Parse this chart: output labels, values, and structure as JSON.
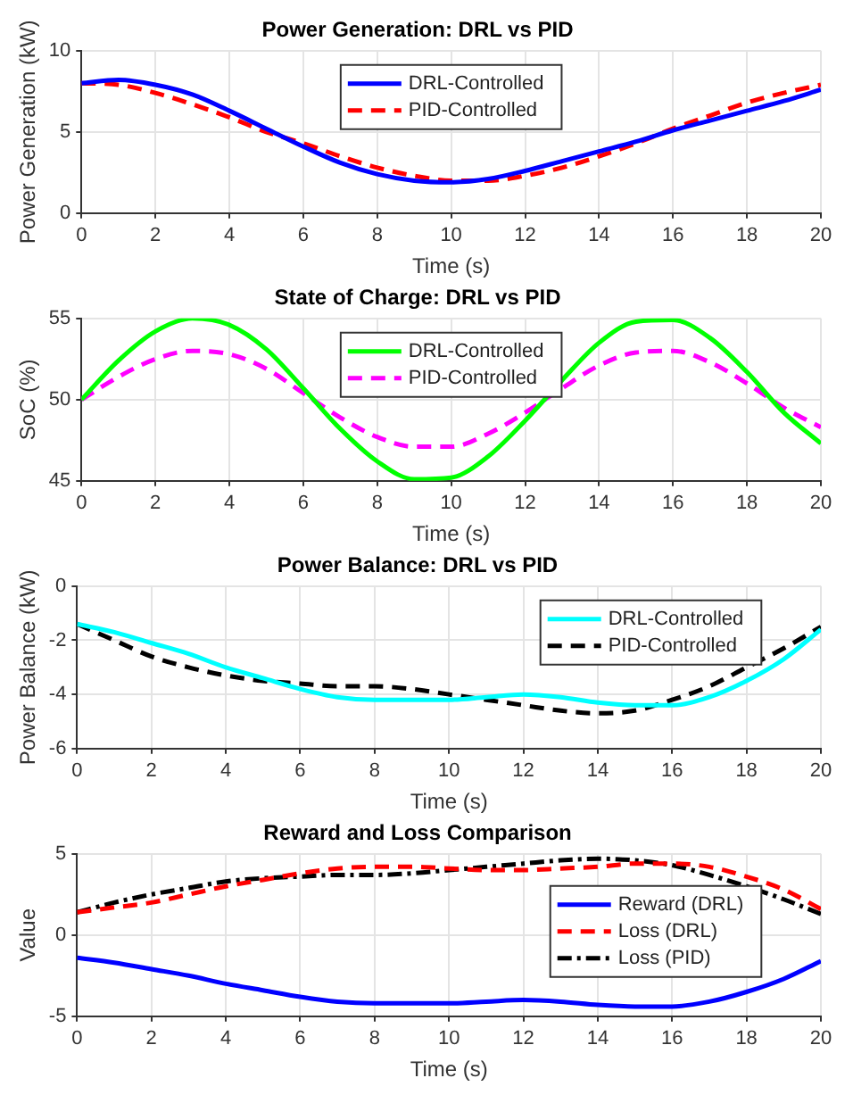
{
  "chart_data": [
    {
      "type": "line",
      "title": "Power Generation: DRL vs PID",
      "xlabel": "Time (s)",
      "ylabel": "Power Generation (kW)",
      "x": [
        0,
        1,
        2,
        3,
        4,
        5,
        6,
        7,
        8,
        9,
        10,
        11,
        12,
        13,
        14,
        15,
        16,
        17,
        18,
        19,
        20
      ],
      "xlim": [
        0,
        20
      ],
      "xticks": [
        0,
        2,
        4,
        6,
        8,
        10,
        12,
        14,
        16,
        18,
        20
      ],
      "ylim": [
        0,
        10
      ],
      "yticks": [
        0,
        5,
        10
      ],
      "grid": true,
      "legend": "top",
      "series": [
        {
          "name": "DRL-Controlled",
          "color": "#0000ff",
          "line_style": "solid",
          "values": [
            8.0,
            8.2,
            7.9,
            7.3,
            6.3,
            5.2,
            4.1,
            3.1,
            2.4,
            2.0,
            1.9,
            2.1,
            2.6,
            3.2,
            3.8,
            4.4,
            5.1,
            5.7,
            6.3,
            6.9,
            7.6
          ]
        },
        {
          "name": "PID-Controlled",
          "color": "#ff0000",
          "line_style": "dashed",
          "values": [
            8.0,
            7.9,
            7.4,
            6.7,
            5.9,
            5.0,
            4.3,
            3.5,
            2.8,
            2.3,
            2.0,
            2.0,
            2.3,
            2.8,
            3.5,
            4.3,
            5.2,
            6.0,
            6.8,
            7.4,
            7.9
          ]
        }
      ]
    },
    {
      "type": "line",
      "title": "State of Charge: DRL vs PID",
      "xlabel": "Time (s)",
      "ylabel": "SoC (%)",
      "x": [
        0,
        1,
        2,
        3,
        4,
        5,
        6,
        7,
        8,
        9,
        10,
        11,
        12,
        13,
        14,
        15,
        16,
        17,
        18,
        19,
        20
      ],
      "xlim": [
        0,
        20
      ],
      "xticks": [
        0,
        2,
        4,
        6,
        8,
        10,
        12,
        14,
        16,
        18,
        20
      ],
      "ylim": [
        45,
        55
      ],
      "yticks": [
        45,
        50,
        55
      ],
      "grid": true,
      "legend": "top",
      "series": [
        {
          "name": "DRL-Controlled",
          "color": "#00ff00",
          "line_style": "solid",
          "values": [
            50,
            52.4,
            54.2,
            55,
            54.6,
            53.1,
            50.7,
            48.2,
            46.2,
            45.1,
            45.2,
            46.5,
            48.7,
            51.2,
            53.5,
            54.8,
            54.9,
            53.8,
            51.7,
            49.2,
            47.3
          ]
        },
        {
          "name": "PID-Controlled",
          "color": "#ff00ff",
          "line_style": "dashed",
          "values": [
            50,
            51.4,
            52.5,
            53,
            52.8,
            51.9,
            50.4,
            48.9,
            47.7,
            47.1,
            47.1,
            47.9,
            49.2,
            50.7,
            52.1,
            52.9,
            53.0,
            52.3,
            51.0,
            49.5,
            48.3
          ]
        }
      ]
    },
    {
      "type": "line",
      "title": "Power Balance: DRL vs PID",
      "xlabel": "Time (s)",
      "ylabel": "Power Balance (kW)",
      "x": [
        0,
        1,
        2,
        3,
        4,
        5,
        6,
        7,
        8,
        9,
        10,
        11,
        12,
        13,
        14,
        15,
        16,
        17,
        18,
        19,
        20
      ],
      "xlim": [
        0,
        20
      ],
      "xticks": [
        0,
        2,
        4,
        6,
        8,
        10,
        12,
        14,
        16,
        18,
        20
      ],
      "ylim": [
        -6,
        0
      ],
      "yticks": [
        -6,
        -4,
        -2,
        0
      ],
      "grid": true,
      "legend": "top right",
      "series": [
        {
          "name": "DRL-Controlled",
          "color": "#00ffff",
          "line_style": "solid",
          "values": [
            -1.4,
            -1.7,
            -2.1,
            -2.5,
            -3.0,
            -3.4,
            -3.8,
            -4.1,
            -4.2,
            -4.2,
            -4.2,
            -4.1,
            -4.0,
            -4.1,
            -4.3,
            -4.4,
            -4.4,
            -4.1,
            -3.5,
            -2.7,
            -1.6
          ]
        },
        {
          "name": "PID-Controlled",
          "color": "#000000",
          "line_style": "dashed",
          "values": [
            -1.4,
            -2.0,
            -2.6,
            -3.0,
            -3.3,
            -3.5,
            -3.6,
            -3.7,
            -3.7,
            -3.8,
            -4.0,
            -4.2,
            -4.4,
            -4.6,
            -4.7,
            -4.6,
            -4.2,
            -3.7,
            -3.0,
            -2.3,
            -1.5
          ]
        }
      ]
    },
    {
      "type": "line",
      "title": "Reward and Loss Comparison",
      "xlabel": "Time (s)",
      "ylabel": "Value",
      "x": [
        0,
        1,
        2,
        3,
        4,
        5,
        6,
        7,
        8,
        9,
        10,
        11,
        12,
        13,
        14,
        15,
        16,
        17,
        18,
        19,
        20
      ],
      "xlim": [
        0,
        20
      ],
      "xticks": [
        0,
        2,
        4,
        6,
        8,
        10,
        12,
        14,
        16,
        18,
        20
      ],
      "ylim": [
        -5,
        5
      ],
      "yticks": [
        -5,
        0,
        5
      ],
      "grid": true,
      "legend": "right",
      "series": [
        {
          "name": "Reward (DRL)",
          "color": "#0000ff",
          "line_style": "solid",
          "values": [
            -1.4,
            -1.7,
            -2.1,
            -2.5,
            -3.0,
            -3.4,
            -3.8,
            -4.1,
            -4.2,
            -4.2,
            -4.2,
            -4.1,
            -4.0,
            -4.1,
            -4.3,
            -4.4,
            -4.4,
            -4.1,
            -3.5,
            -2.7,
            -1.6
          ]
        },
        {
          "name": "Loss (DRL)",
          "color": "#ff0000",
          "line_style": "dashed",
          "values": [
            1.4,
            1.7,
            2.0,
            2.5,
            3.0,
            3.4,
            3.8,
            4.1,
            4.2,
            4.2,
            4.1,
            4.0,
            4.0,
            4.1,
            4.2,
            4.4,
            4.4,
            4.2,
            3.6,
            2.8,
            1.6
          ]
        },
        {
          "name": "Loss (PID)",
          "color": "#000000",
          "line_style": "dashdot",
          "values": [
            1.4,
            2.0,
            2.5,
            2.9,
            3.3,
            3.5,
            3.6,
            3.7,
            3.7,
            3.8,
            4.0,
            4.2,
            4.4,
            4.6,
            4.7,
            4.6,
            4.3,
            3.7,
            3.0,
            2.2,
            1.3
          ]
        }
      ]
    }
  ]
}
